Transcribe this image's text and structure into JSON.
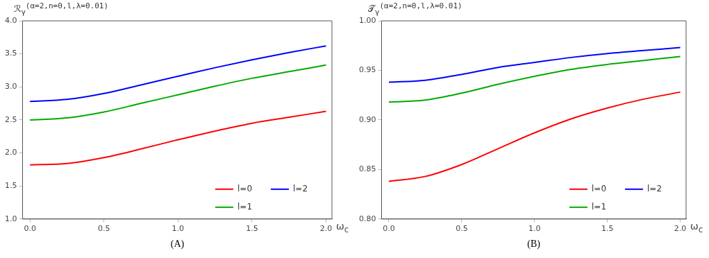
{
  "chart_data": [
    {
      "type": "line",
      "ylabel": "ℛ$_{γ}$$^{(α=2,n=0,l,λ=0.01)}$",
      "xlabel": "ω$_{c}$",
      "annotations": [
        "(A)"
      ],
      "x": [
        0,
        0.25,
        0.5,
        0.75,
        1.0,
        1.25,
        1.5,
        1.75,
        2.0
      ],
      "series": [
        {
          "name": "l=0",
          "color": "#ff0000",
          "values": [
            1.82,
            1.84,
            1.93,
            2.06,
            2.2,
            2.33,
            2.45,
            2.54,
            2.63
          ]
        },
        {
          "name": "l=1",
          "color": "#00aa00",
          "values": [
            2.5,
            2.53,
            2.62,
            2.75,
            2.88,
            3.01,
            3.13,
            3.23,
            3.33
          ]
        },
        {
          "name": "l=2",
          "color": "#0000ff",
          "values": [
            2.78,
            2.81,
            2.9,
            3.03,
            3.16,
            3.29,
            3.41,
            3.52,
            3.62
          ]
        }
      ],
      "xlim": [
        -0.05,
        2.04
      ],
      "xticks": [
        {
          "value": 0,
          "label": "0.0"
        },
        {
          "value": 0.5,
          "label": "0.5"
        },
        {
          "value": 1,
          "label": "1.0"
        },
        {
          "value": 1.5,
          "label": "1.5"
        },
        {
          "value": 2,
          "label": "2.0"
        }
      ],
      "ylim": [
        1,
        4
      ],
      "yticks": [
        {
          "value": 1,
          "label": "1.0"
        },
        {
          "value": 1.5,
          "label": "1.5"
        },
        {
          "value": 2,
          "label": "2.0"
        },
        {
          "value": 2.5,
          "label": "2.5"
        },
        {
          "value": 3,
          "label": "3.0"
        },
        {
          "value": 3.5,
          "label": "3.5"
        },
        {
          "value": 4,
          "label": "4.0"
        }
      ],
      "grid": false,
      "legend": "bottom right",
      "marker": "none",
      "line_style": "solid"
    },
    {
      "type": "line",
      "ylabel": "𝒯$_{γ}$$^{(α=2,n=0,l,λ=0.01)}$",
      "xlabel": "ω$_{c}$",
      "annotations": [
        "(B)"
      ],
      "x": [
        0,
        0.25,
        0.5,
        0.75,
        1.0,
        1.25,
        1.5,
        1.75,
        2.0
      ],
      "series": [
        {
          "name": "l=0",
          "color": "#ff0000",
          "values": [
            0.838,
            0.843,
            0.855,
            0.871,
            0.887,
            0.901,
            0.912,
            0.921,
            0.928
          ]
        },
        {
          "name": "l=1",
          "color": "#00aa00",
          "values": [
            0.918,
            0.92,
            0.927,
            0.936,
            0.944,
            0.951,
            0.956,
            0.96,
            0.964
          ]
        },
        {
          "name": "l=2",
          "color": "#0000ff",
          "values": [
            0.938,
            0.94,
            0.946,
            0.953,
            0.958,
            0.963,
            0.967,
            0.97,
            0.973
          ]
        }
      ],
      "xlim": [
        -0.05,
        2.04
      ],
      "xticks": [
        {
          "value": 0,
          "label": "0.0"
        },
        {
          "value": 0.5,
          "label": "0.5"
        },
        {
          "value": 1,
          "label": "1.0"
        },
        {
          "value": 1.5,
          "label": "1.5"
        },
        {
          "value": 2,
          "label": "2.0"
        }
      ],
      "ylim": [
        0.8,
        1.0
      ],
      "yticks": [
        {
          "value": 0.8,
          "label": "0.80"
        },
        {
          "value": 0.85,
          "label": "0.85"
        },
        {
          "value": 0.9,
          "label": "0.90"
        },
        {
          "value": 0.95,
          "label": "0.95"
        },
        {
          "value": 1.0,
          "label": "1.00"
        }
      ],
      "grid": false,
      "legend": "bottom right",
      "marker": "none",
      "line_style": "solid"
    }
  ]
}
